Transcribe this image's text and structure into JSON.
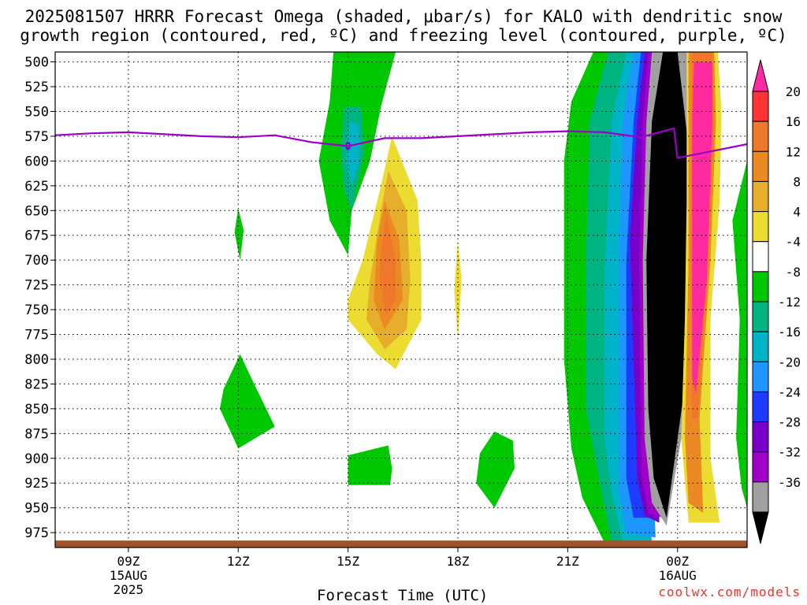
{
  "title": {
    "line1": "2025081507 HRRR Forecast Omega (shaded, μbar/s) for KALO with dendritic snow",
    "line2": "growth region (contoured, red, ºC) and freezing level (contoured, purple, ºC)"
  },
  "credit": "coolwx.com/models",
  "chart_data": {
    "type": "heatmap",
    "xlabel": "Forecast Time (UTC)",
    "ylabel": "",
    "x_range_hours_utc": [
      7,
      25.9
    ],
    "ylim": [
      490,
      990
    ],
    "y_ticks": [
      500,
      525,
      550,
      575,
      600,
      625,
      650,
      675,
      700,
      725,
      750,
      775,
      800,
      825,
      850,
      875,
      900,
      925,
      950,
      975
    ],
    "x_ticks": [
      {
        "hour": 9,
        "label": "09Z",
        "sub1": "15AUG",
        "sub2": "2025"
      },
      {
        "hour": 12,
        "label": "12Z",
        "sub1": "",
        "sub2": ""
      },
      {
        "hour": 15,
        "label": "15Z",
        "sub1": "",
        "sub2": ""
      },
      {
        "hour": 18,
        "label": "18Z",
        "sub1": "",
        "sub2": ""
      },
      {
        "hour": 21,
        "label": "21Z",
        "sub1": "",
        "sub2": ""
      },
      {
        "hour": 24,
        "label": "00Z",
        "sub1": "16AUG",
        "sub2": ""
      }
    ],
    "grid": true,
    "colorbar": {
      "levels": [
        -36,
        -32,
        -28,
        -24,
        -20,
        -16,
        -12,
        -8,
        -4,
        4,
        8,
        12,
        16,
        20
      ],
      "labels": [
        "20",
        "16",
        "12",
        "8",
        "4",
        "-4",
        "-8",
        "-12",
        "-16",
        "-20",
        "-24",
        "-28",
        "-32",
        "-36"
      ],
      "colors_top_to_bottom": [
        "#ff2aa0",
        "#ff3333",
        "#f0782a",
        "#eb8a23",
        "#e6ae2a",
        "#ecdc32",
        "#ffffff",
        "#00c800",
        "#00b482",
        "#00b4c8",
        "#1e96ff",
        "#1e3cff",
        "#7800c8",
        "#a000c8",
        "#a0a0a0",
        "#000000"
      ]
    },
    "freezing_level": {
      "label": "0",
      "hours": [
        7,
        8,
        9,
        10,
        11,
        12,
        13,
        14,
        15,
        16,
        17,
        18,
        19,
        20,
        21,
        22,
        23,
        23.9,
        24,
        25.9
      ],
      "pressure_hpa": [
        574,
        572,
        571,
        573,
        575,
        576,
        574,
        581,
        585,
        577,
        577,
        575,
        573,
        571,
        570,
        571,
        576,
        567,
        597,
        583
      ]
    },
    "terrain_hpa": 983,
    "colors": {
      "background": "#ffffff",
      "terrain": "#a0522d",
      "freezing_level": "#9a00c8",
      "credit": "#e8352a"
    }
  }
}
